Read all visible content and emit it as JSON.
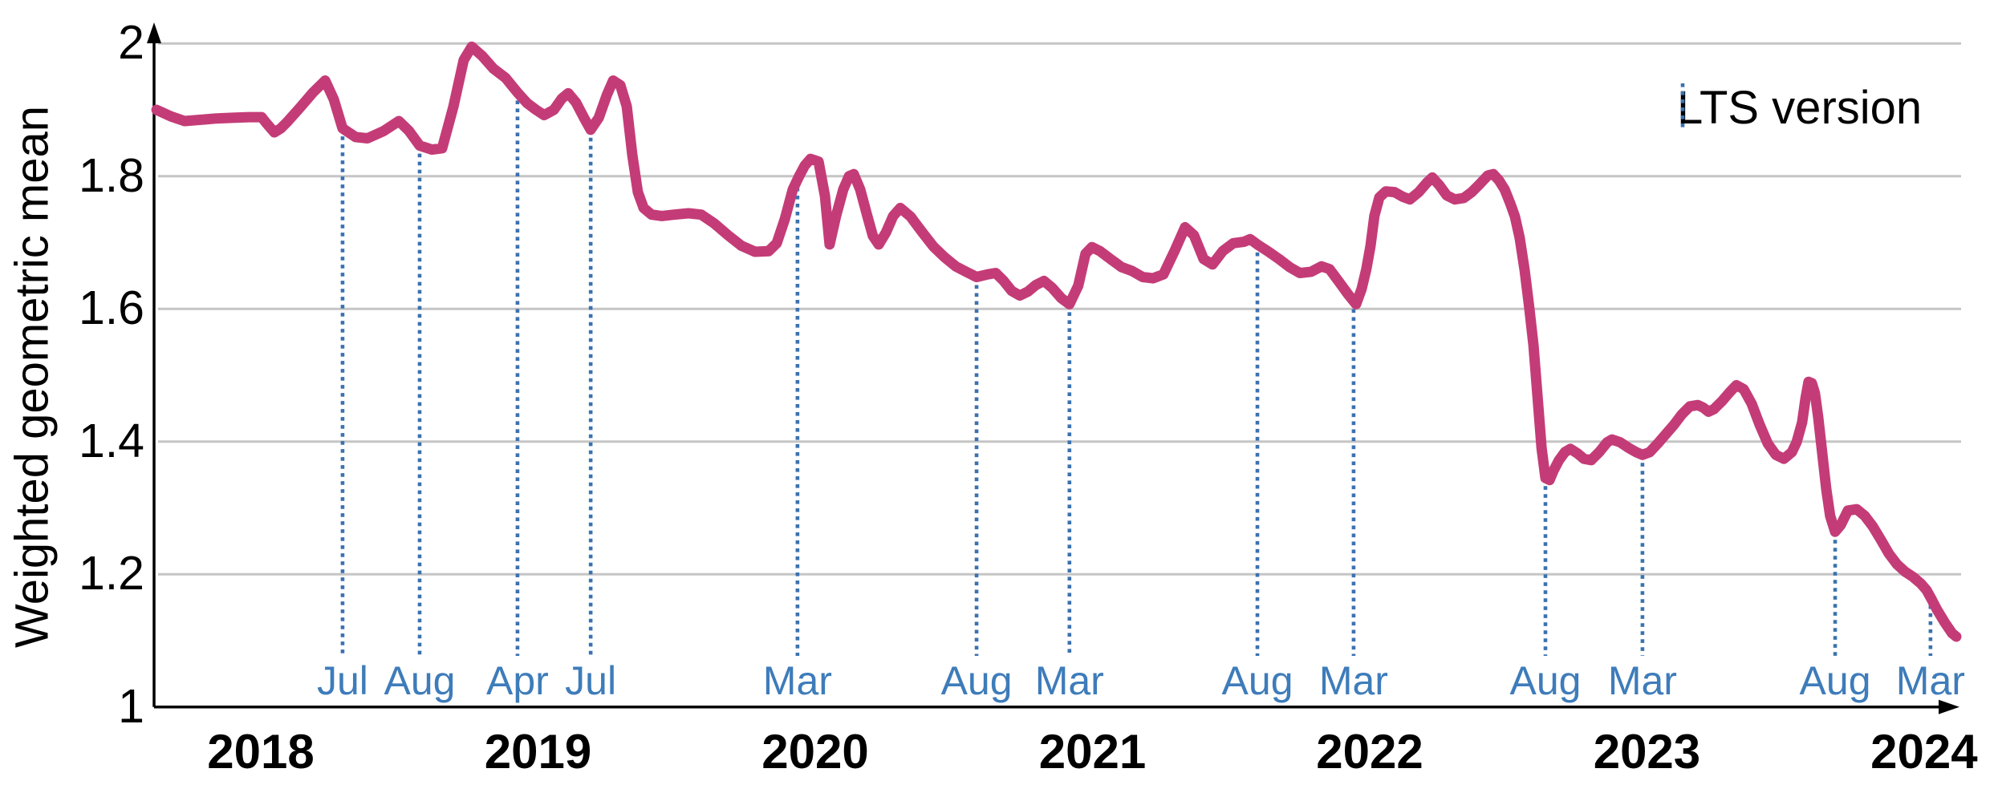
{
  "legend": {
    "label": "LTS version"
  },
  "chart_data": {
    "type": "line",
    "title": "",
    "xlabel": "",
    "ylabel": "Weighted geometric mean",
    "xlim": [
      2017.615,
      2024.116
    ],
    "ylim": [
      1,
      2
    ],
    "grid": "horizontal",
    "legend_position": "top-right",
    "yticks": {
      "values": [
        1,
        1.2,
        1.4,
        1.6,
        1.8,
        2
      ],
      "labels": [
        "1",
        "1.2",
        "1.4",
        "1.6",
        "1.8",
        "2"
      ]
    },
    "xticks": {
      "values": [
        2018,
        2019,
        2020,
        2021,
        2022,
        2023,
        2024
      ],
      "labels": [
        "2018",
        "2019",
        "2020",
        "2021",
        "2022",
        "2023",
        "2024"
      ]
    },
    "colors": {
      "series": "#c43c77",
      "lts_line": "#3a72b0",
      "month_label": "#3e7cba",
      "gridline": "#c5c5c5",
      "axis": "#000000",
      "text": "#000000"
    },
    "legend_entries": [
      {
        "label": "LTS version",
        "marker": "blue-dotted-vertical-line"
      }
    ],
    "lts_releases": [
      {
        "x": 2018.295,
        "label": "Jul"
      },
      {
        "x": 2018.573,
        "label": "Aug"
      },
      {
        "x": 2018.926,
        "label": "Apr"
      },
      {
        "x": 2019.19,
        "label": "Jul"
      },
      {
        "x": 2019.936,
        "label": "Mar"
      },
      {
        "x": 2020.582,
        "label": "Aug"
      },
      {
        "x": 2020.917,
        "label": "Mar"
      },
      {
        "x": 2021.595,
        "label": "Aug"
      },
      {
        "x": 2021.942,
        "label": "Mar"
      },
      {
        "x": 2022.634,
        "label": "Aug"
      },
      {
        "x": 2022.984,
        "label": "Mar"
      },
      {
        "x": 2023.679,
        "label": "Aug"
      },
      {
        "x": 2024.023,
        "label": "Mar"
      }
    ],
    "series": [
      {
        "name": "Weighted geometric mean",
        "color": "#c43c77",
        "points": [
          [
            2017.624,
            1.9
          ],
          [
            2017.676,
            1.89
          ],
          [
            2017.725,
            1.883
          ],
          [
            2017.783,
            1.885
          ],
          [
            2017.841,
            1.887
          ],
          [
            2017.899,
            1.888
          ],
          [
            2017.957,
            1.889
          ],
          [
            2018.003,
            1.889
          ],
          [
            2018.02,
            1.88
          ],
          [
            2018.049,
            1.866
          ],
          [
            2018.072,
            1.872
          ],
          [
            2018.096,
            1.882
          ],
          [
            2018.145,
            1.905
          ],
          [
            2018.188,
            1.926
          ],
          [
            2018.232,
            1.944
          ],
          [
            2018.263,
            1.916
          ],
          [
            2018.295,
            1.872
          ],
          [
            2018.342,
            1.859
          ],
          [
            2018.385,
            1.857
          ],
          [
            2018.443,
            1.868
          ],
          [
            2018.498,
            1.883
          ],
          [
            2018.535,
            1.868
          ],
          [
            2018.573,
            1.846
          ],
          [
            2018.617,
            1.84
          ],
          [
            2018.654,
            1.842
          ],
          [
            2018.695,
            1.905
          ],
          [
            2018.732,
            1.975
          ],
          [
            2018.761,
            1.995
          ],
          [
            2018.799,
            1.981
          ],
          [
            2018.839,
            1.962
          ],
          [
            2018.883,
            1.948
          ],
          [
            2018.926,
            1.926
          ],
          [
            2018.961,
            1.91
          ],
          [
            2018.993,
            1.9
          ],
          [
            2019.022,
            1.892
          ],
          [
            2019.057,
            1.9
          ],
          [
            2019.086,
            1.917
          ],
          [
            2019.109,
            1.925
          ],
          [
            2019.137,
            1.911
          ],
          [
            2019.166,
            1.888
          ],
          [
            2019.19,
            1.87
          ],
          [
            2019.219,
            1.888
          ],
          [
            2019.248,
            1.922
          ],
          [
            2019.271,
            1.944
          ],
          [
            2019.297,
            1.937
          ],
          [
            2019.32,
            1.905
          ],
          [
            2019.34,
            1.832
          ],
          [
            2019.36,
            1.776
          ],
          [
            2019.381,
            1.752
          ],
          [
            2019.41,
            1.742
          ],
          [
            2019.447,
            1.74
          ],
          [
            2019.491,
            1.742
          ],
          [
            2019.543,
            1.744
          ],
          [
            2019.589,
            1.742
          ],
          [
            2019.635,
            1.729
          ],
          [
            2019.685,
            1.711
          ],
          [
            2019.734,
            1.695
          ],
          [
            2019.783,
            1.686
          ],
          [
            2019.832,
            1.687
          ],
          [
            2019.861,
            1.699
          ],
          [
            2019.89,
            1.735
          ],
          [
            2019.919,
            1.78
          ],
          [
            2019.942,
            1.8
          ],
          [
            2019.962,
            1.816
          ],
          [
            2019.983,
            1.826
          ],
          [
            2020.012,
            1.822
          ],
          [
            2020.035,
            1.77
          ],
          [
            2020.052,
            1.697
          ],
          [
            2020.075,
            1.74
          ],
          [
            2020.101,
            1.78
          ],
          [
            2020.122,
            1.8
          ],
          [
            2020.139,
            1.803
          ],
          [
            2020.162,
            1.78
          ],
          [
            2020.188,
            1.74
          ],
          [
            2020.208,
            1.71
          ],
          [
            2020.229,
            1.697
          ],
          [
            2020.255,
            1.715
          ],
          [
            2020.281,
            1.74
          ],
          [
            2020.307,
            1.752
          ],
          [
            2020.344,
            1.739
          ],
          [
            2020.385,
            1.716
          ],
          [
            2020.426,
            1.694
          ],
          [
            2020.466,
            1.678
          ],
          [
            2020.507,
            1.664
          ],
          [
            2020.544,
            1.656
          ],
          [
            2020.582,
            1.648
          ],
          [
            2020.622,
            1.652
          ],
          [
            2020.651,
            1.654
          ],
          [
            2020.68,
            1.642
          ],
          [
            2020.709,
            1.627
          ],
          [
            2020.738,
            1.62
          ],
          [
            2020.767,
            1.626
          ],
          [
            2020.796,
            1.636
          ],
          [
            2020.825,
            1.642
          ],
          [
            2020.854,
            1.632
          ],
          [
            2020.888,
            1.616
          ],
          [
            2020.917,
            1.607
          ],
          [
            2020.949,
            1.635
          ],
          [
            2020.975,
            1.683
          ],
          [
            2020.998,
            1.693
          ],
          [
            2021.027,
            1.687
          ],
          [
            2021.065,
            1.675
          ],
          [
            2021.105,
            1.663
          ],
          [
            2021.143,
            1.657
          ],
          [
            2021.181,
            1.648
          ],
          [
            2021.218,
            1.646
          ],
          [
            2021.256,
            1.652
          ],
          [
            2021.296,
            1.687
          ],
          [
            2021.334,
            1.723
          ],
          [
            2021.366,
            1.711
          ],
          [
            2021.401,
            1.675
          ],
          [
            2021.433,
            1.667
          ],
          [
            2021.47,
            1.687
          ],
          [
            2021.508,
            1.699
          ],
          [
            2021.546,
            1.701
          ],
          [
            2021.569,
            1.705
          ],
          [
            2021.595,
            1.697
          ],
          [
            2021.632,
            1.687
          ],
          [
            2021.673,
            1.675
          ],
          [
            2021.711,
            1.663
          ],
          [
            2021.748,
            1.654
          ],
          [
            2021.789,
            1.656
          ],
          [
            2021.826,
            1.664
          ],
          [
            2021.855,
            1.66
          ],
          [
            2021.887,
            1.642
          ],
          [
            2021.922,
            1.622
          ],
          [
            2021.951,
            1.607
          ],
          [
            2021.971,
            1.63
          ],
          [
            2021.988,
            1.66
          ],
          [
            2022.003,
            1.695
          ],
          [
            2022.017,
            1.74
          ],
          [
            2022.035,
            1.768
          ],
          [
            2022.058,
            1.777
          ],
          [
            2022.09,
            1.776
          ],
          [
            2022.119,
            1.769
          ],
          [
            2022.145,
            1.765
          ],
          [
            2022.177,
            1.776
          ],
          [
            2022.206,
            1.79
          ],
          [
            2022.226,
            1.798
          ],
          [
            2022.252,
            1.786
          ],
          [
            2022.278,
            1.771
          ],
          [
            2022.307,
            1.765
          ],
          [
            2022.339,
            1.767
          ],
          [
            2022.368,
            1.776
          ],
          [
            2022.397,
            1.788
          ],
          [
            2022.426,
            1.801
          ],
          [
            2022.446,
            1.803
          ],
          [
            2022.466,
            1.794
          ],
          [
            2022.487,
            1.78
          ],
          [
            2022.507,
            1.759
          ],
          [
            2022.524,
            1.739
          ],
          [
            2022.541,
            1.707
          ],
          [
            2022.559,
            1.658
          ],
          [
            2022.576,
            1.6
          ],
          [
            2022.591,
            1.545
          ],
          [
            2022.605,
            1.47
          ],
          [
            2022.62,
            1.39
          ],
          [
            2022.634,
            1.345
          ],
          [
            2022.649,
            1.342
          ],
          [
            2022.663,
            1.356
          ],
          [
            2022.683,
            1.372
          ],
          [
            2022.704,
            1.384
          ],
          [
            2022.724,
            1.389
          ],
          [
            2022.75,
            1.382
          ],
          [
            2022.773,
            1.374
          ],
          [
            2022.799,
            1.372
          ],
          [
            2022.828,
            1.384
          ],
          [
            2022.857,
            1.399
          ],
          [
            2022.874,
            1.403
          ],
          [
            2022.903,
            1.399
          ],
          [
            2022.932,
            1.391
          ],
          [
            2022.961,
            1.384
          ],
          [
            2022.984,
            1.38
          ],
          [
            2023.01,
            1.384
          ],
          [
            2023.039,
            1.397
          ],
          [
            2023.068,
            1.411
          ],
          [
            2023.097,
            1.425
          ],
          [
            2023.126,
            1.441
          ],
          [
            2023.155,
            1.453
          ],
          [
            2023.184,
            1.455
          ],
          [
            2023.204,
            1.451
          ],
          [
            2023.222,
            1.445
          ],
          [
            2023.242,
            1.449
          ],
          [
            2023.271,
            1.461
          ],
          [
            2023.3,
            1.475
          ],
          [
            2023.323,
            1.485
          ],
          [
            2023.349,
            1.479
          ],
          [
            2023.378,
            1.457
          ],
          [
            2023.407,
            1.425
          ],
          [
            2023.436,
            1.397
          ],
          [
            2023.465,
            1.38
          ],
          [
            2023.494,
            1.374
          ],
          [
            2023.523,
            1.384
          ],
          [
            2023.54,
            1.399
          ],
          [
            2023.56,
            1.429
          ],
          [
            2023.572,
            1.465
          ],
          [
            2023.583,
            1.49
          ],
          [
            2023.595,
            1.488
          ],
          [
            2023.606,
            1.473
          ],
          [
            2023.618,
            1.437
          ],
          [
            2023.632,
            1.384
          ],
          [
            2023.647,
            1.328
          ],
          [
            2023.661,
            1.288
          ],
          [
            2023.679,
            1.264
          ],
          [
            2023.699,
            1.274
          ],
          [
            2023.725,
            1.296
          ],
          [
            2023.757,
            1.298
          ],
          [
            2023.786,
            1.288
          ],
          [
            2023.815,
            1.272
          ],
          [
            2023.844,
            1.252
          ],
          [
            2023.873,
            1.231
          ],
          [
            2023.902,
            1.215
          ],
          [
            2023.931,
            1.204
          ],
          [
            2023.96,
            1.196
          ],
          [
            2023.988,
            1.186
          ],
          [
            2024.009,
            1.176
          ],
          [
            2024.026,
            1.163
          ],
          [
            2024.046,
            1.147
          ],
          [
            2024.075,
            1.127
          ],
          [
            2024.101,
            1.111
          ],
          [
            2024.116,
            1.106
          ]
        ]
      }
    ]
  }
}
